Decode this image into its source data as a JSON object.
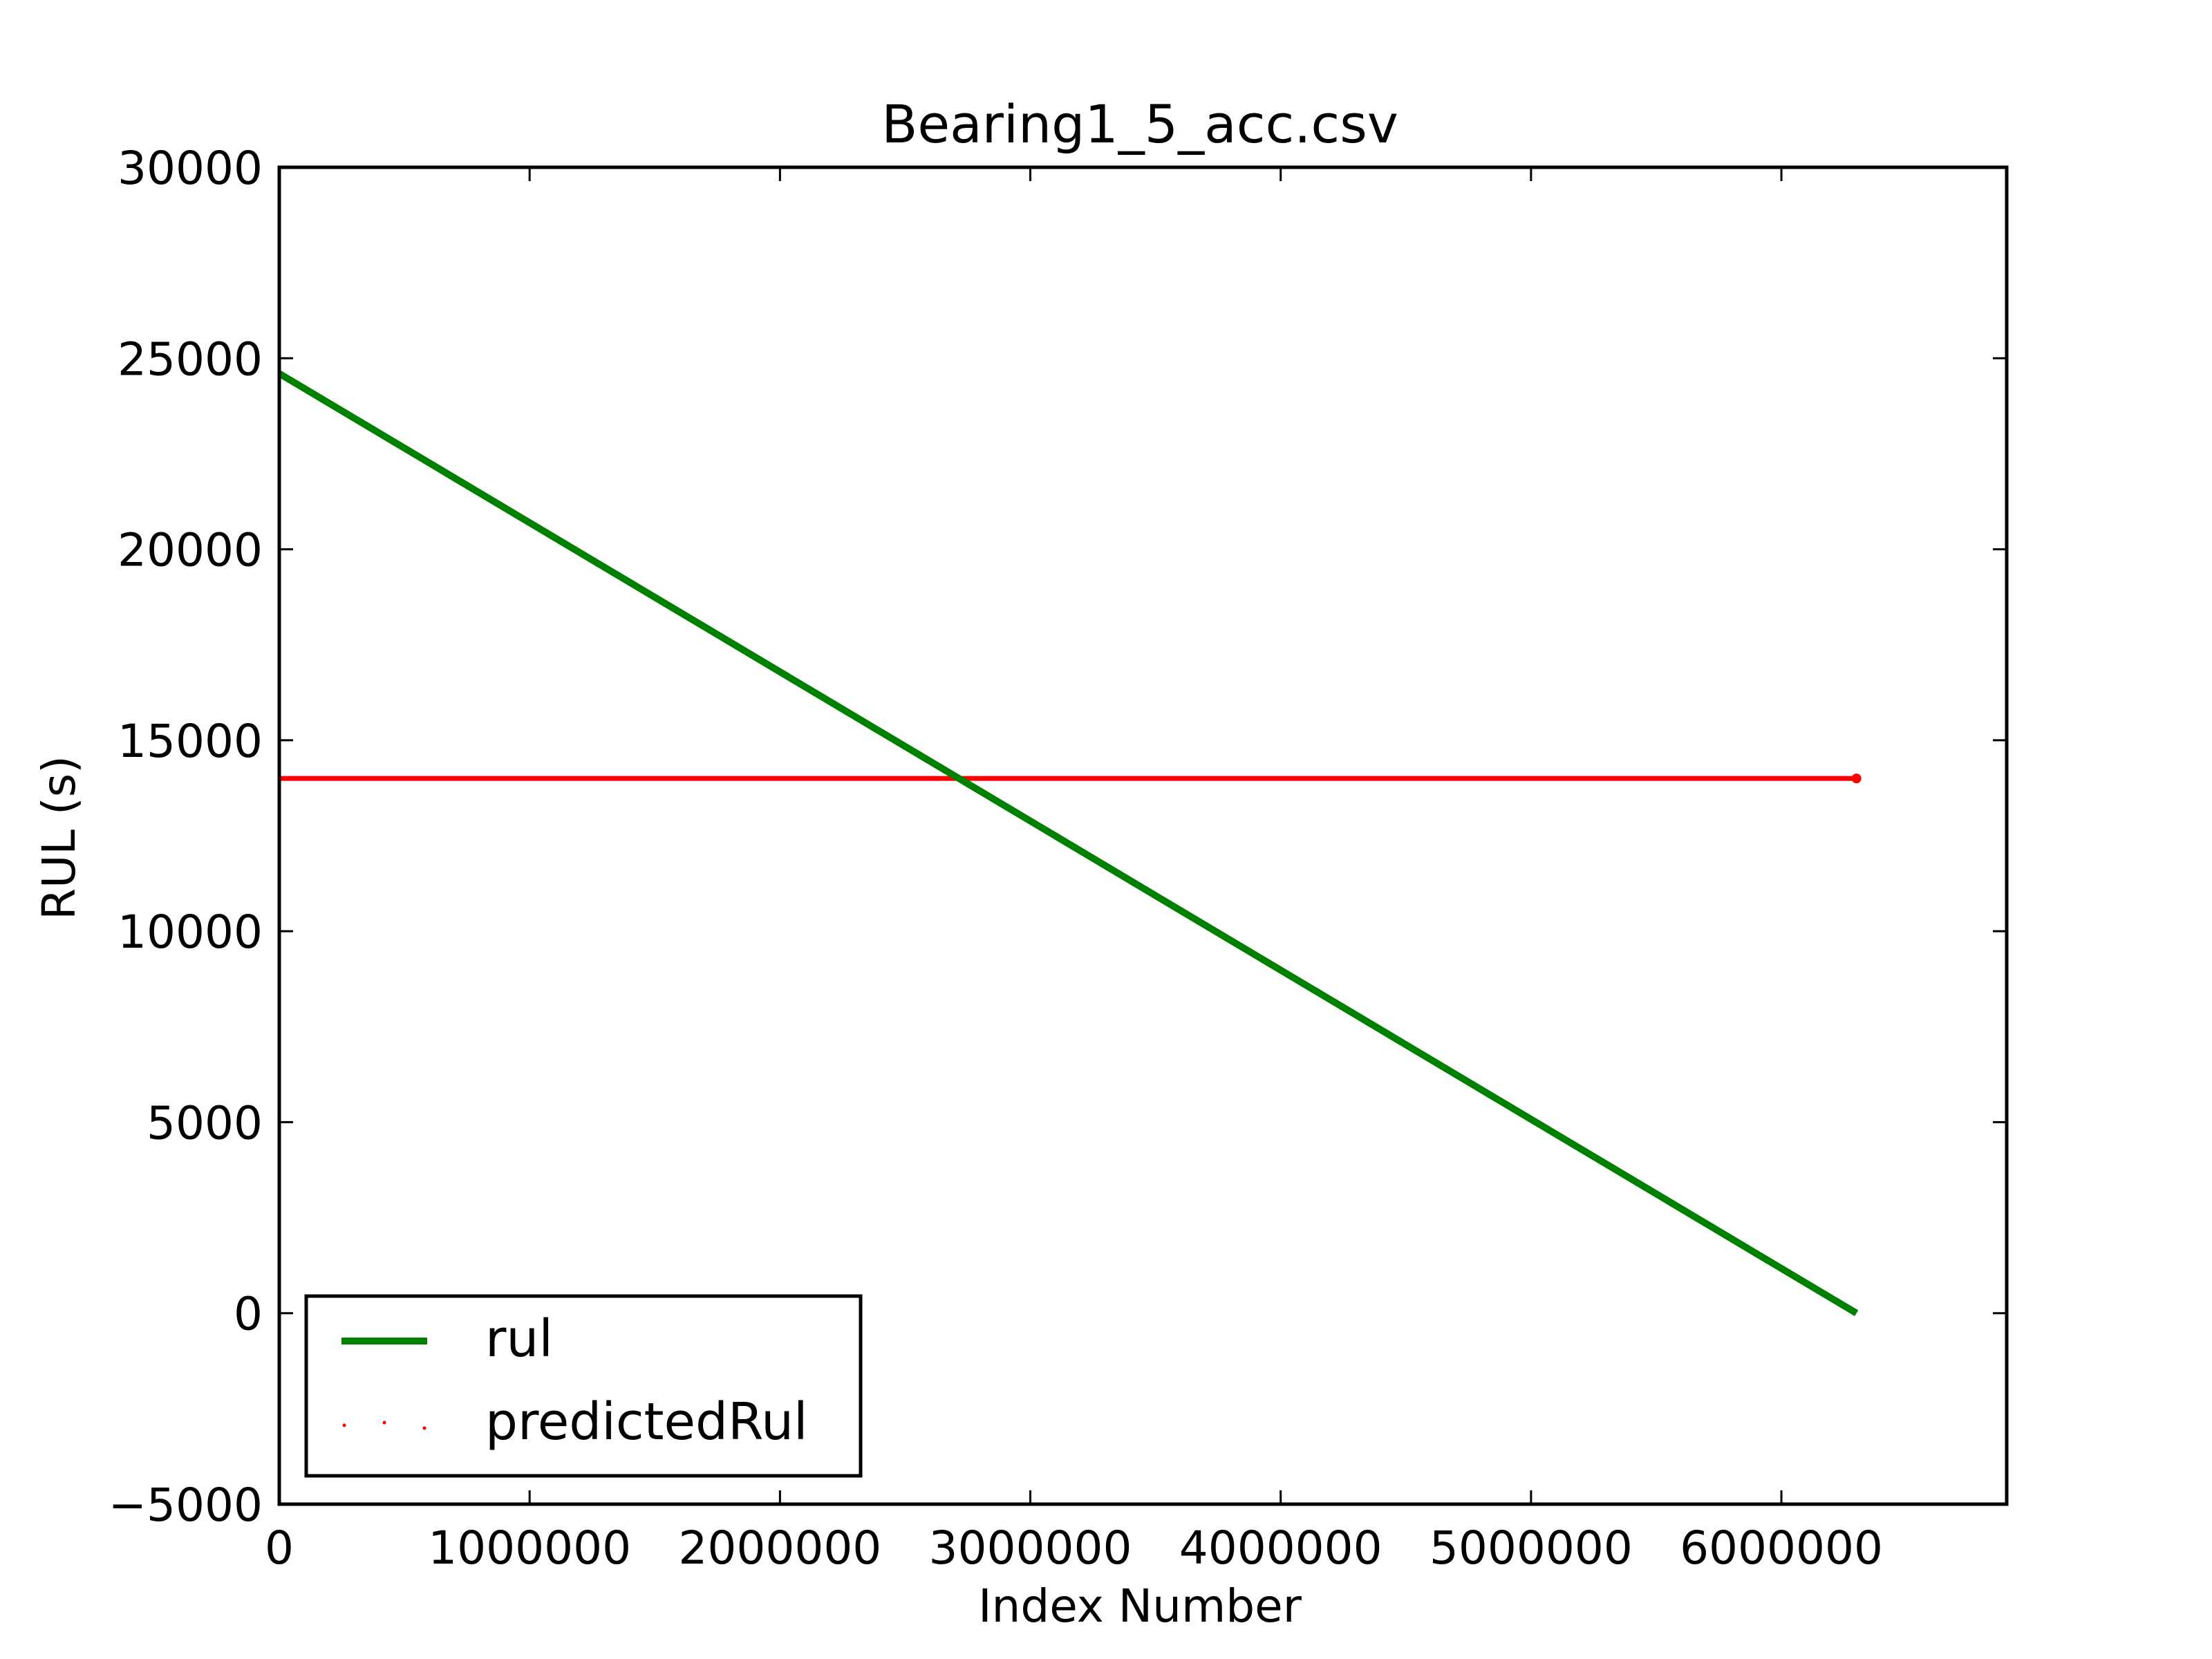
{
  "chart_data": {
    "type": "line",
    "title": "Bearing1_5_acc.csv",
    "xlabel": "Index Number",
    "ylabel": "RUL (s)",
    "xlim": [
      0,
      6900000
    ],
    "ylim": [
      -5000,
      30000
    ],
    "xticks": [
      0,
      1000000,
      2000000,
      3000000,
      4000000,
      5000000,
      6000000
    ],
    "xtick_labels": [
      "0",
      "1000000",
      "2000000",
      "3000000",
      "4000000",
      "5000000",
      "6000000"
    ],
    "yticks": [
      -5000,
      0,
      5000,
      10000,
      15000,
      20000,
      25000,
      30000
    ],
    "ytick_labels": [
      "−5000",
      "0",
      "5000",
      "10000",
      "15000",
      "20000",
      "25000",
      "30000"
    ],
    "grid": false,
    "legend_position": "lower-left",
    "series": [
      {
        "name": "rul",
        "style": "solid-line",
        "color": "#008000",
        "x": [
          0,
          6300000
        ],
        "y": [
          24600,
          0
        ]
      },
      {
        "name": "predictedRul",
        "style": "dots",
        "color": "#ff0000",
        "x": [
          0,
          6300000
        ],
        "y": [
          14000,
          14000
        ]
      }
    ]
  }
}
